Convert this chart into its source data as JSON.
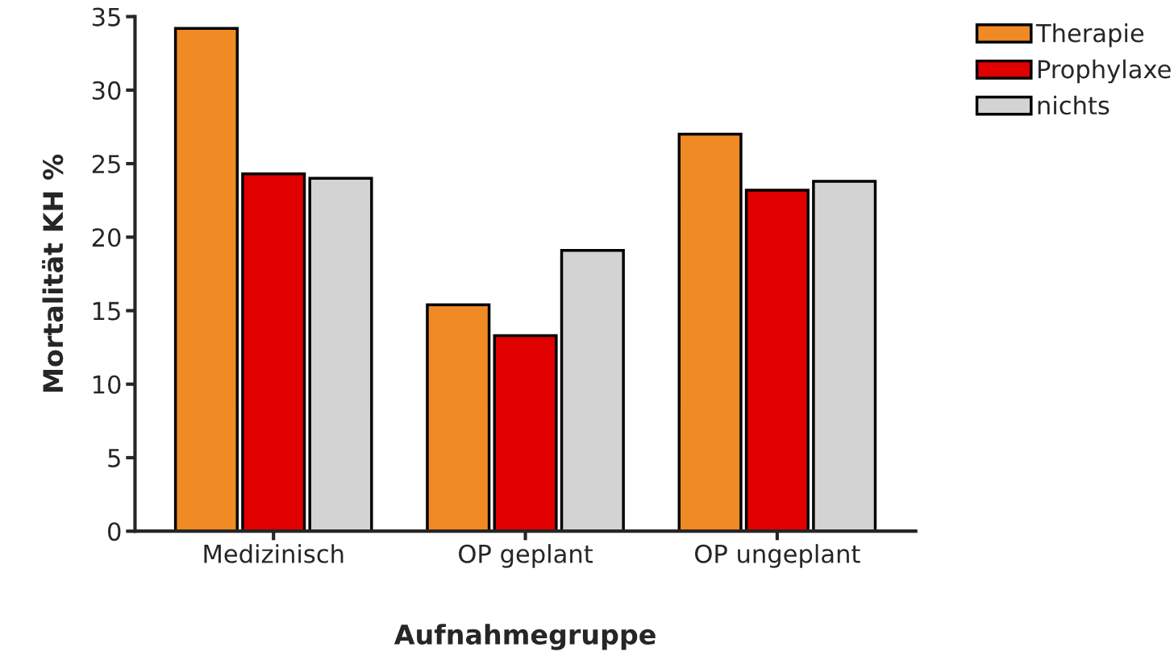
{
  "chart_data": {
    "type": "bar",
    "xlabel": "Aufnahmegruppe",
    "ylabel": "Mortalität KH %",
    "categories": [
      "Medizinisch",
      "OP geplant",
      "OP ungeplant"
    ],
    "series": [
      {
        "name": "Therapie",
        "color": "#f08a24",
        "values": [
          34.2,
          15.4,
          27.0
        ]
      },
      {
        "name": "Prophylaxe",
        "color": "#e00000",
        "values": [
          24.3,
          13.3,
          23.2
        ]
      },
      {
        "name": "nichts",
        "color": "#d3d3d3",
        "values": [
          24.0,
          19.1,
          23.8
        ]
      }
    ],
    "ylim": [
      0,
      35
    ],
    "yticks": [
      0,
      5,
      10,
      15,
      20,
      25,
      30,
      35
    ],
    "grid": false,
    "legend": "top right"
  }
}
